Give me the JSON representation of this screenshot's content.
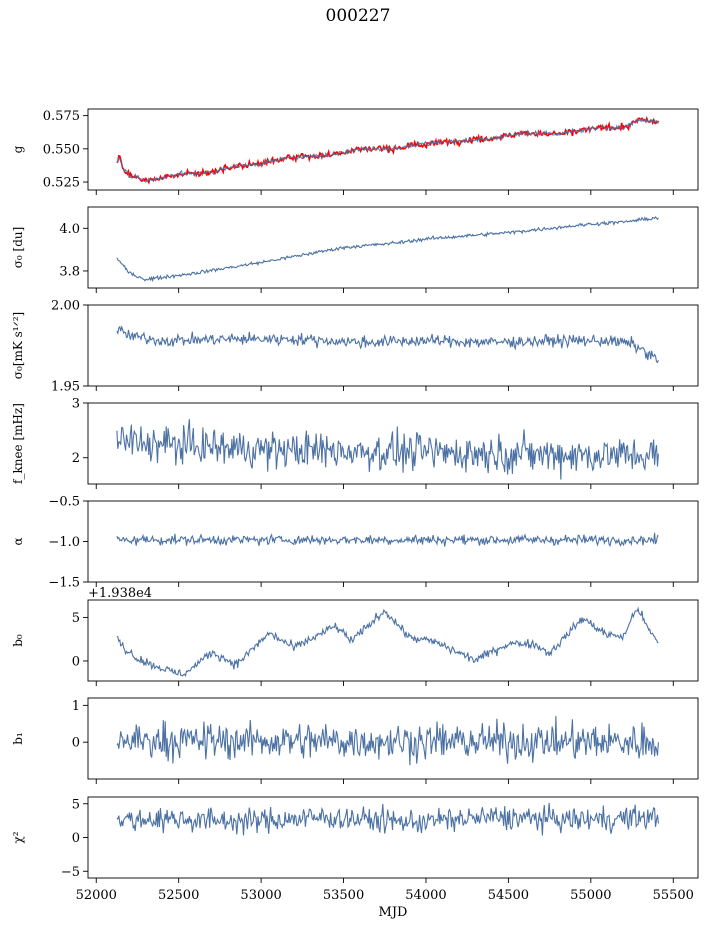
{
  "figure": {
    "title": "000227",
    "xlabel": "MJD"
  },
  "chart_data": {
    "type": "line",
    "title": "000227",
    "xlabel": "MJD",
    "xlim": [
      51950,
      55650
    ],
    "xticks": [
      52000,
      52500,
      53000,
      53500,
      54000,
      54500,
      55000,
      55500
    ],
    "x_start": 52125,
    "x_end": 55410,
    "line_color": "#4c72a4",
    "highlight_color": "#ff0000",
    "panels": [
      {
        "id": "g",
        "ylabel": "g",
        "ylim": [
          0.519,
          0.58
        ],
        "yticks": [
          0.525,
          0.55,
          0.575
        ],
        "ytick_labels": [
          "0.525",
          "0.550",
          "0.575"
        ],
        "trend": [
          [
            52125,
            0.538
          ],
          [
            52140,
            0.545
          ],
          [
            52160,
            0.536
          ],
          [
            52200,
            0.53
          ],
          [
            52300,
            0.526
          ],
          [
            52350,
            0.527
          ],
          [
            52500,
            0.531
          ],
          [
            52700,
            0.532
          ],
          [
            52800,
            0.536
          ],
          [
            53000,
            0.539
          ],
          [
            53200,
            0.544
          ],
          [
            53400,
            0.545
          ],
          [
            53600,
            0.55
          ],
          [
            53800,
            0.55
          ],
          [
            54000,
            0.554
          ],
          [
            54200,
            0.556
          ],
          [
            54400,
            0.558
          ],
          [
            54600,
            0.562
          ],
          [
            54800,
            0.561
          ],
          [
            55000,
            0.565
          ],
          [
            55100,
            0.566
          ],
          [
            55200,
            0.566
          ],
          [
            55300,
            0.572
          ],
          [
            55410,
            0.57
          ]
        ],
        "noise": 0.0009,
        "overlay_noise": 0.0012,
        "overlay": true
      },
      {
        "id": "sigma0_du",
        "ylabel": "σ₀ [du]",
        "ylim": [
          3.72,
          4.1
        ],
        "yticks": [
          3.8,
          4.0
        ],
        "ytick_labels": [
          "3.8",
          "4.0"
        ],
        "trend": [
          [
            52125,
            3.86
          ],
          [
            52200,
            3.79
          ],
          [
            52300,
            3.76
          ],
          [
            52400,
            3.77
          ],
          [
            52600,
            3.79
          ],
          [
            53000,
            3.84
          ],
          [
            53500,
            3.91
          ],
          [
            53800,
            3.93
          ],
          [
            54000,
            3.95
          ],
          [
            54500,
            3.98
          ],
          [
            55000,
            4.02
          ],
          [
            55200,
            4.03
          ],
          [
            55410,
            4.05
          ]
        ],
        "noise": 0.004
      },
      {
        "id": "sigma0_mk",
        "ylabel": "σ₀[mK s¹ᐟ²]",
        "ylim": [
          1.95,
          2.0
        ],
        "yticks": [
          1.95,
          2.0
        ],
        "ytick_labels": [
          "1.95",
          "2.00"
        ],
        "trend": [
          [
            52125,
            1.985
          ],
          [
            52200,
            1.981
          ],
          [
            52400,
            1.978
          ],
          [
            52800,
            1.979
          ],
          [
            53200,
            1.979
          ],
          [
            53600,
            1.977
          ],
          [
            54000,
            1.978
          ],
          [
            54400,
            1.977
          ],
          [
            54800,
            1.978
          ],
          [
            55100,
            1.978
          ],
          [
            55250,
            1.976
          ],
          [
            55410,
            1.966
          ]
        ],
        "noise": 0.0018
      },
      {
        "id": "fknee",
        "ylabel": "f_knee [mHz]",
        "ylim": [
          1.52,
          3.0
        ],
        "yticks": [
          2,
          3
        ],
        "ytick_labels": [
          "2",
          "3"
        ],
        "trend": [
          [
            52125,
            2.3
          ],
          [
            52400,
            2.25
          ],
          [
            53000,
            2.15
          ],
          [
            54000,
            2.1
          ],
          [
            55000,
            2.05
          ],
          [
            55410,
            2.05
          ]
        ],
        "noise": 0.17
      },
      {
        "id": "alpha",
        "ylabel": "α",
        "ylim": [
          -1.5,
          -0.5
        ],
        "yticks": [
          -1.5,
          -1.0,
          -0.5
        ],
        "ytick_labels": [
          "−1.5",
          "−1.0",
          "−0.5"
        ],
        "trend": [
          [
            52125,
            -0.98
          ],
          [
            55410,
            -0.98
          ]
        ],
        "noise": 0.03
      },
      {
        "id": "b0",
        "ylabel": "b₀",
        "ylim": [
          -2.3,
          7.0
        ],
        "yticks": [
          0,
          5
        ],
        "ytick_labels": [
          "0",
          "5"
        ],
        "offset_text": "+1.938e4",
        "trend": [
          [
            52125,
            3.0
          ],
          [
            52150,
            1.8
          ],
          [
            52250,
            0.3
          ],
          [
            52350,
            -0.5
          ],
          [
            52500,
            -1.5
          ],
          [
            52550,
            -1.3
          ],
          [
            52700,
            1.0
          ],
          [
            52850,
            -0.4
          ],
          [
            53050,
            3.2
          ],
          [
            53200,
            1.5
          ],
          [
            53450,
            4.0
          ],
          [
            53550,
            2.3
          ],
          [
            53750,
            5.8
          ],
          [
            53900,
            2.7
          ],
          [
            54050,
            2.2
          ],
          [
            54300,
            0.1
          ],
          [
            54500,
            2.0
          ],
          [
            54650,
            2.0
          ],
          [
            54750,
            0.9
          ],
          [
            54950,
            4.9
          ],
          [
            55100,
            3.0
          ],
          [
            55200,
            2.8
          ],
          [
            55280,
            6.2
          ],
          [
            55350,
            3.6
          ],
          [
            55410,
            2.0
          ]
        ],
        "noise": 0.25
      },
      {
        "id": "b1",
        "ylabel": "b₁",
        "ylim": [
          -1.0,
          1.2
        ],
        "yticks": [
          0,
          1
        ],
        "ytick_labels": [
          "0",
          "1"
        ],
        "trend": [
          [
            52125,
            0.05
          ],
          [
            55410,
            0.0
          ]
        ],
        "noise": 0.25
      },
      {
        "id": "chi2",
        "ylabel": "χ²",
        "ylim": [
          -6.0,
          6.0
        ],
        "yticks": [
          -5,
          0,
          5
        ],
        "ytick_labels": [
          "−5",
          "0",
          "5"
        ],
        "trend": [
          [
            52125,
            2.5
          ],
          [
            52400,
            2.8
          ],
          [
            52900,
            2.4
          ],
          [
            53400,
            3.0
          ],
          [
            53900,
            2.3
          ],
          [
            54400,
            3.0
          ],
          [
            54900,
            2.6
          ],
          [
            55410,
            3.0
          ]
        ],
        "noise": 0.9
      }
    ]
  }
}
